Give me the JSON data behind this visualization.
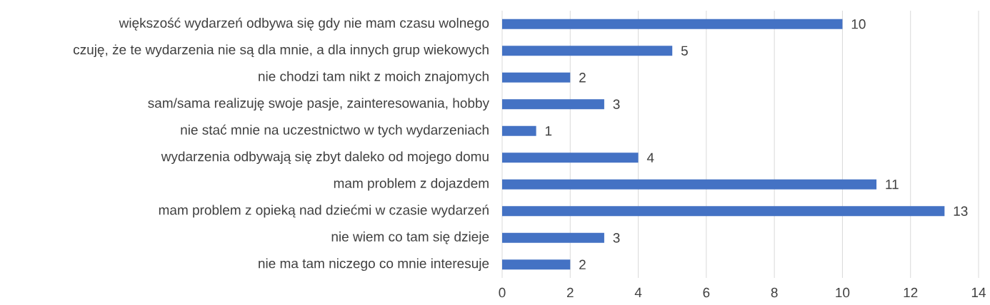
{
  "chart_data": {
    "type": "bar",
    "orientation": "horizontal",
    "categories": [
      "większość wydarzeń odbywa się gdy nie mam czasu wolnego",
      "czuję, że te wydarzenia nie są dla mnie, a dla innych grup wiekowych",
      "nie chodzi tam nikt z moich znajomych",
      "sam/sama realizuję swoje pasje, zainteresowania, hobby",
      "nie stać mnie na uczestnictwo w tych wydarzeniach",
      "wydarzenia odbywają się zbyt daleko od mojego domu",
      "mam problem z dojazdem",
      "mam problem z opieką nad dziećmi w czasie wydarzeń",
      "nie wiem co tam się dzieje",
      "nie ma tam niczego co mnie interesuje"
    ],
    "values": [
      10,
      5,
      2,
      3,
      1,
      4,
      11,
      13,
      3,
      2
    ],
    "color": "#4472c4",
    "xlim": [
      0,
      14
    ],
    "xticks": [
      0,
      2,
      4,
      6,
      8,
      10,
      12,
      14
    ],
    "grid": "x",
    "data_labels": true
  }
}
